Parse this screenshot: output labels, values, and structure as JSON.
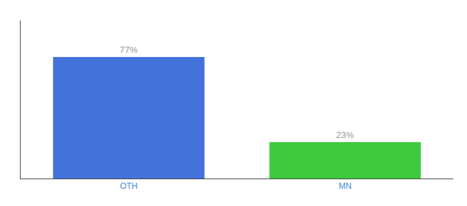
{
  "chart_data": {
    "type": "bar",
    "categories": [
      "OTH",
      "MN"
    ],
    "values": [
      77,
      23
    ],
    "value_labels": [
      "77%",
      "23%"
    ],
    "colors": [
      "#4472db",
      "#3dc93d"
    ],
    "ylim": [
      0,
      100
    ],
    "tick_labels": "x",
    "data_labels": true,
    "grid": false
  }
}
